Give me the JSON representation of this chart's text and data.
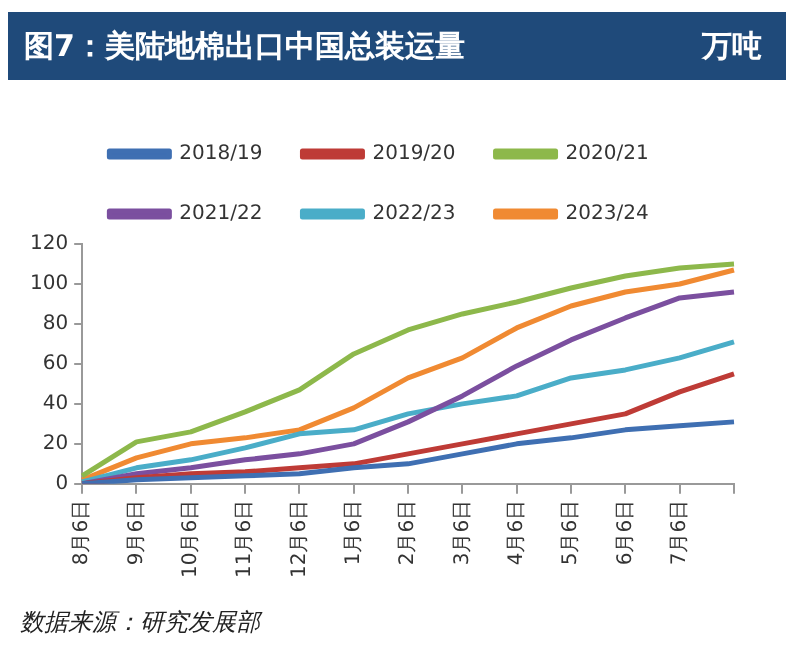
{
  "chart_data": {
    "type": "line",
    "title": "图7：美陆地棉出口中国总装运量",
    "categories": [
      "8月6日",
      "9月6日",
      "10月6日",
      "11月6日",
      "12月6日",
      "1月6日",
      "2月6日",
      "3月6日",
      "4月6日",
      "5月6日",
      "6月6日",
      "7月6日",
      null
    ],
    "series": [
      {
        "name": "2018/19",
        "color": "#3f6fb2",
        "values": [
          0,
          2,
          3,
          4,
          5,
          8,
          10,
          15,
          20,
          23,
          27,
          29,
          31
        ]
      },
      {
        "name": "2019/20",
        "color": "#be3b36",
        "values": [
          0,
          3,
          5,
          6,
          8,
          10,
          15,
          20,
          25,
          30,
          35,
          46,
          55
        ]
      },
      {
        "name": "2020/21",
        "color": "#8db84b",
        "values": [
          4,
          21,
          26,
          36,
          47,
          65,
          77,
          85,
          91,
          98,
          104,
          108,
          110
        ]
      },
      {
        "name": "2021/22",
        "color": "#7b4f9f",
        "values": [
          0,
          5,
          8,
          12,
          15,
          20,
          31,
          44,
          59,
          72,
          83,
          93,
          96
        ]
      },
      {
        "name": "2022/23",
        "color": "#4aadc8",
        "values": [
          1,
          8,
          12,
          18,
          25,
          27,
          35,
          40,
          44,
          53,
          57,
          63,
          71
        ]
      },
      {
        "name": "2023/24",
        "color": "#f08a32",
        "values": [
          2,
          13,
          20,
          23,
          27,
          38,
          53,
          63,
          78,
          89,
          96,
          100,
          107
        ]
      }
    ],
    "ylim": [
      0,
      120
    ],
    "yticks": [
      0,
      20,
      40,
      60,
      80,
      100,
      120
    ],
    "grid": false,
    "legend": "top",
    "marker": "none",
    "line_style": "solid",
    "annotations": [
      "万吨",
      "数据来源：研究发展部"
    ]
  }
}
